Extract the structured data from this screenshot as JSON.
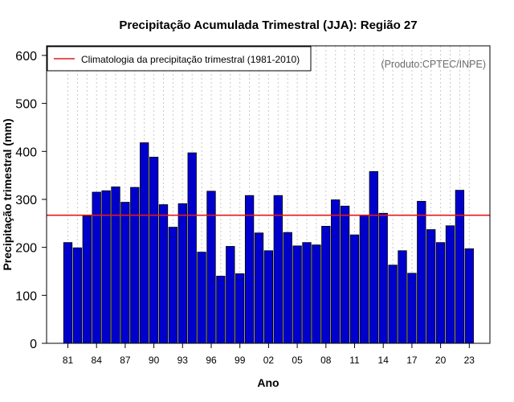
{
  "chart_data": {
    "type": "bar",
    "title": "Precipitação Acumulada Trimestral (JJA): Região 27",
    "xlabel": "Ano",
    "ylabel": "Precipitação trimestral (mm)",
    "ylim": [
      0,
      620
    ],
    "yticks": [
      0,
      100,
      200,
      300,
      400,
      500,
      600
    ],
    "x": [
      1981,
      1982,
      1983,
      1984,
      1985,
      1986,
      1987,
      1988,
      1989,
      1990,
      1991,
      1992,
      1993,
      1994,
      1995,
      1996,
      1997,
      1998,
      1999,
      2000,
      2001,
      2002,
      2003,
      2004,
      2005,
      2006,
      2007,
      2008,
      2009,
      2010,
      2011,
      2012,
      2013,
      2014,
      2015,
      2016,
      2017,
      2018,
      2019,
      2020,
      2021,
      2022,
      2023
    ],
    "values": [
      210,
      199,
      265,
      315,
      318,
      326,
      294,
      325,
      418,
      388,
      289,
      242,
      291,
      397,
      190,
      317,
      140,
      202,
      145,
      308,
      230,
      193,
      308,
      231,
      203,
      210,
      205,
      244,
      299,
      286,
      226,
      267,
      358,
      271,
      163,
      193,
      146,
      296,
      237,
      210,
      245,
      319,
      197
    ],
    "xtick_positions": [
      1981,
      1984,
      1987,
      1990,
      1993,
      1996,
      1999,
      2002,
      2005,
      2008,
      2011,
      2014,
      2017,
      2020,
      2023
    ],
    "xtick_labels": [
      "81",
      "84",
      "87",
      "90",
      "93",
      "96",
      "99",
      "02",
      "05",
      "08",
      "11",
      "14",
      "17",
      "20",
      "23"
    ],
    "climatology": {
      "value": 267,
      "label": "Climatologia da precipitação trimestral (1981-2010)"
    },
    "legend_position": "top-left",
    "grid": "vertical dotted",
    "annotation": "(Produto:CPTEC/INPE)",
    "colors": {
      "bar": "#0000cd",
      "bar_border": "#000000",
      "climatology": "#e31a1c",
      "grid": "#c8c8c8",
      "annotation": "#6b6b6b"
    }
  }
}
